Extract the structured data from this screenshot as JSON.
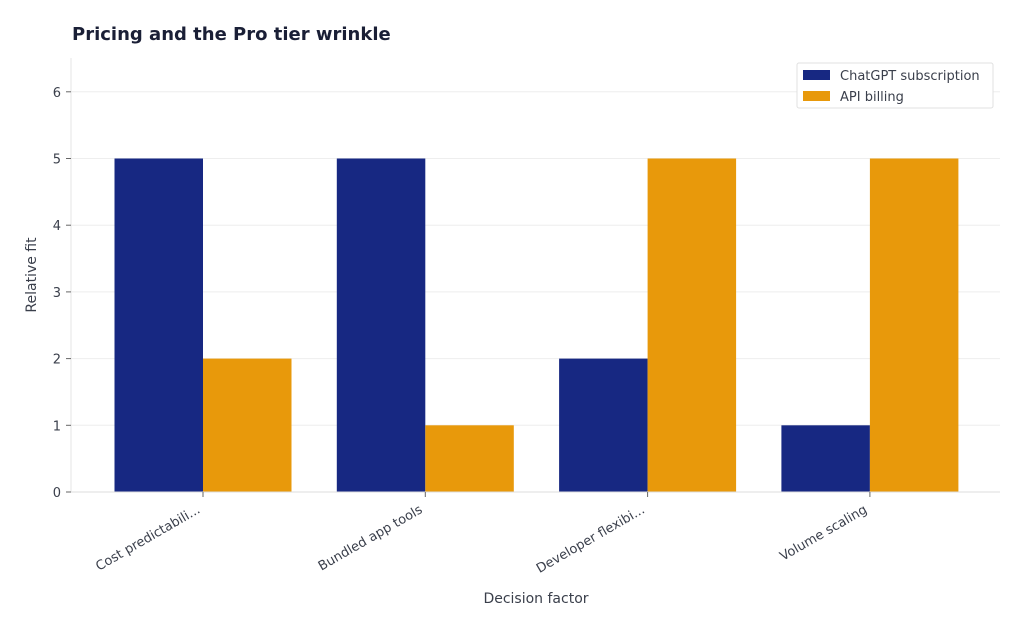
{
  "chart_data": {
    "type": "bar",
    "title": "Pricing and the Pro tier wrinkle",
    "xlabel": "Decision factor",
    "ylabel": "Relative fit",
    "categories": [
      "Cost predictabili...",
      "Bundled app tools",
      "Developer flexibi...",
      "Volume scaling"
    ],
    "series": [
      {
        "name": "ChatGPT subscription",
        "values": [
          5,
          5,
          2,
          1
        ],
        "color": "#172882"
      },
      {
        "name": "API billing",
        "values": [
          2,
          1,
          5,
          5
        ],
        "color": "#e8990b"
      }
    ],
    "ylim": [
      0,
      6.5
    ],
    "yticks": [
      "0",
      "1",
      "2",
      "3",
      "4",
      "5",
      "6"
    ],
    "grid": true,
    "legend_position": "top-right"
  }
}
